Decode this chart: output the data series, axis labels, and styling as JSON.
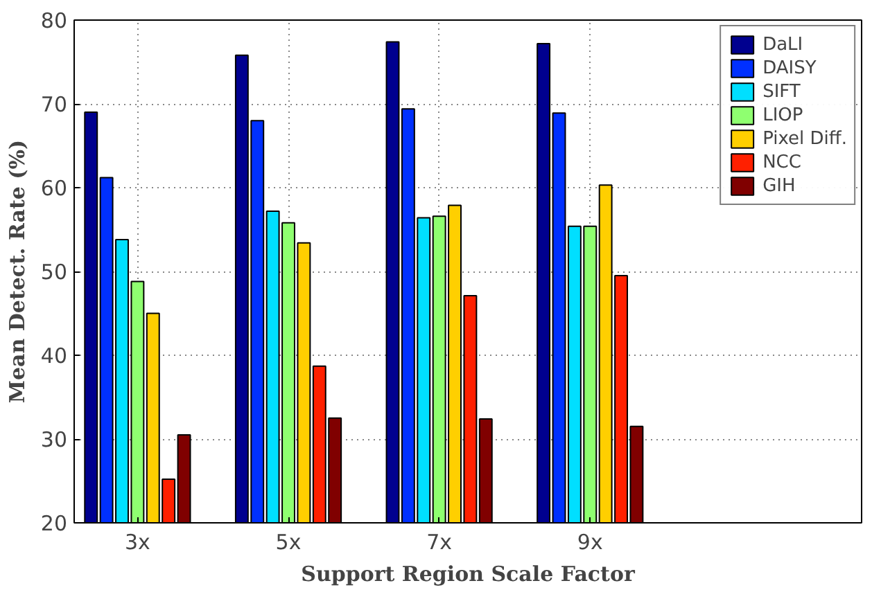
{
  "chart_data": {
    "type": "bar",
    "xlabel": "Support Region Scale Factor",
    "ylabel": "Mean Detect. Rate (%)",
    "x": [
      3,
      5,
      7,
      9
    ],
    "xlim": [
      2.16,
      12.6
    ],
    "xticks": [
      {
        "value": 3,
        "label": "3x"
      },
      {
        "value": 5,
        "label": "5x"
      },
      {
        "value": 7,
        "label": "7x"
      },
      {
        "value": 9,
        "label": "9x"
      }
    ],
    "ylim": [
      20,
      80
    ],
    "yticks": [
      20,
      30,
      40,
      50,
      60,
      70,
      80
    ],
    "grid": true,
    "legend": "top right",
    "series": [
      {
        "name": "DaLI",
        "color": "#00008f",
        "values": [
          69.0,
          75.8,
          77.4,
          77.2
        ]
      },
      {
        "name": "DAISY",
        "color": "#0030ff",
        "values": [
          61.2,
          68.0,
          69.4,
          68.9
        ]
      },
      {
        "name": "SIFT",
        "color": "#00dfff",
        "values": [
          53.8,
          57.2,
          56.4,
          55.4
        ]
      },
      {
        "name": "LIOP",
        "color": "#8fff70",
        "values": [
          48.8,
          55.8,
          56.6,
          55.4
        ]
      },
      {
        "name": "Pixel Diff.",
        "color": "#ffcf00",
        "values": [
          45.0,
          53.4,
          57.9,
          60.3
        ]
      },
      {
        "name": "NCC",
        "color": "#ff2000",
        "values": [
          25.2,
          38.7,
          47.1,
          49.5
        ]
      },
      {
        "name": "GIH",
        "color": "#800000",
        "values": [
          30.5,
          32.5,
          32.4,
          31.5
        ]
      }
    ]
  }
}
